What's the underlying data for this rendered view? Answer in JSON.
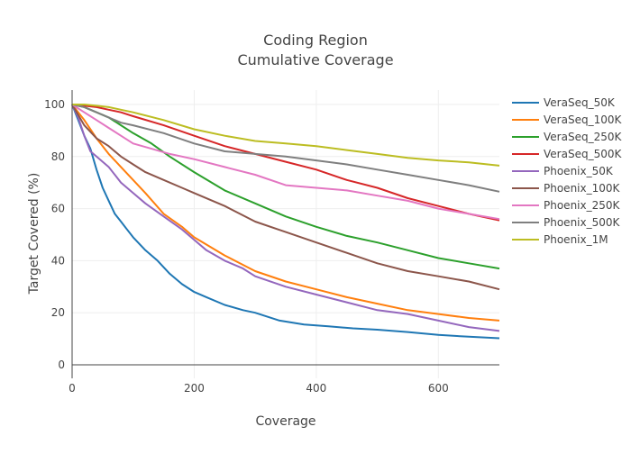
{
  "chart_data": {
    "type": "line",
    "title_lines": [
      "Coding Region",
      "Cumulative Coverage"
    ],
    "xlabel": "Coverage",
    "ylabel": "Target Covered (%)",
    "xlim": [
      0,
      700
    ],
    "ylim": [
      0,
      100
    ],
    "xticks": [
      0,
      200,
      400,
      600
    ],
    "yticks": [
      0,
      20,
      40,
      60,
      80,
      100
    ],
    "grid": true,
    "legend_position": "right",
    "series": [
      {
        "name": "VeraSeq_50K",
        "color": "#1f77b4",
        "x": [
          0,
          10,
          20,
          30,
          40,
          50,
          60,
          70,
          80,
          90,
          100,
          120,
          140,
          160,
          180,
          200,
          220,
          250,
          280,
          300,
          340,
          380,
          420,
          460,
          500,
          550,
          600,
          650,
          700
        ],
        "y": [
          100,
          94,
          88,
          83,
          75,
          68,
          63,
          58,
          55,
          52,
          49,
          44,
          40,
          35,
          31,
          28,
          26,
          23,
          21,
          20,
          17,
          15.5,
          14.8,
          14,
          13.5,
          12.6,
          11.5,
          10.8,
          10.2
        ]
      },
      {
        "name": "VeraSeq_100K",
        "color": "#ff7f0e",
        "x": [
          0,
          20,
          40,
          60,
          80,
          100,
          120,
          150,
          180,
          200,
          250,
          300,
          350,
          400,
          450,
          500,
          550,
          600,
          650,
          700
        ],
        "y": [
          100,
          94,
          87,
          81,
          76,
          71,
          66,
          58,
          53,
          49,
          42,
          36,
          32,
          29,
          26,
          23.5,
          21,
          19.5,
          18,
          17
        ]
      },
      {
        "name": "VeraSeq_250K",
        "color": "#2ca02c",
        "x": [
          0,
          20,
          40,
          60,
          80,
          100,
          130,
          160,
          200,
          250,
          300,
          350,
          400,
          450,
          500,
          550,
          600,
          650,
          700
        ],
        "y": [
          100,
          99,
          97,
          95,
          92,
          89,
          85,
          80,
          74,
          67,
          62,
          57,
          53,
          49.5,
          47,
          44,
          41,
          39,
          37
        ]
      },
      {
        "name": "VeraSeq_500K",
        "color": "#d62728",
        "x": [
          0,
          20,
          40,
          60,
          80,
          100,
          150,
          200,
          250,
          300,
          350,
          400,
          450,
          500,
          550,
          600,
          650,
          700
        ],
        "y": [
          100,
          99.5,
          99,
          98,
          97,
          95.5,
          92,
          88,
          84,
          81,
          78,
          75,
          71,
          68,
          64,
          61,
          58,
          55.5
        ]
      },
      {
        "name": "Phoenix_50K",
        "color": "#9467bd",
        "x": [
          0,
          10,
          20,
          30,
          40,
          50,
          60,
          80,
          100,
          120,
          150,
          180,
          200,
          220,
          250,
          280,
          300,
          350,
          400,
          450,
          500,
          550,
          600,
          650,
          700
        ],
        "y": [
          100,
          95,
          88,
          82,
          80,
          78,
          76,
          70,
          66,
          62,
          57,
          52,
          48,
          44,
          40,
          37,
          34,
          30,
          27,
          24,
          21,
          19.5,
          17,
          14.5,
          13
        ]
      },
      {
        "name": "Phoenix_100K",
        "color": "#8c564b",
        "x": [
          0,
          20,
          40,
          60,
          80,
          100,
          120,
          150,
          180,
          200,
          250,
          300,
          350,
          400,
          450,
          500,
          550,
          600,
          650,
          700
        ],
        "y": [
          100,
          92,
          87,
          84,
          80,
          77,
          74,
          71,
          68,
          66,
          61,
          55,
          51,
          47,
          43,
          39,
          36,
          34,
          32,
          29
        ]
      },
      {
        "name": "Phoenix_250K",
        "color": "#e377c2",
        "x": [
          0,
          20,
          40,
          60,
          80,
          100,
          130,
          160,
          200,
          250,
          300,
          350,
          400,
          450,
          500,
          550,
          600,
          650,
          700
        ],
        "y": [
          100,
          97,
          94,
          91,
          88,
          85,
          83,
          81,
          79,
          76,
          73,
          69,
          68,
          67,
          65,
          63,
          60,
          58,
          56
        ]
      },
      {
        "name": "Phoenix_500K",
        "color": "#7f7f7f",
        "x": [
          0,
          20,
          40,
          60,
          80,
          100,
          150,
          200,
          250,
          300,
          350,
          400,
          450,
          500,
          550,
          600,
          650,
          700
        ],
        "y": [
          100,
          99,
          97,
          95,
          93,
          92,
          89,
          85,
          82,
          81,
          80,
          78.5,
          77,
          75,
          73,
          71,
          69,
          66.5
        ]
      },
      {
        "name": "Phoenix_1M",
        "color": "#bcbd22",
        "x": [
          0,
          20,
          40,
          60,
          80,
          100,
          150,
          200,
          250,
          300,
          350,
          400,
          450,
          500,
          550,
          600,
          650,
          700
        ],
        "y": [
          100,
          100,
          99.5,
          99,
          98,
          97,
          94,
          90.5,
          88,
          86,
          85,
          84,
          82.5,
          81,
          79.5,
          78.5,
          77.8,
          76.5
        ]
      }
    ]
  }
}
